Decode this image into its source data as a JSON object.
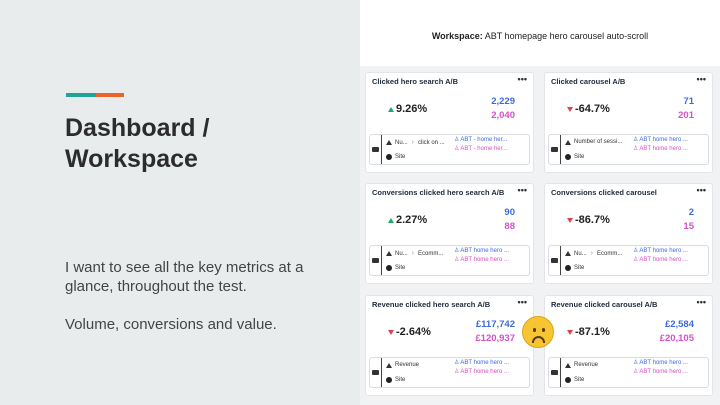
{
  "slide": {
    "title_line1": "Dashboard /",
    "title_line2": "Workspace",
    "desc_p1": "I want to see all the key metrics at a glance, throughout the test.",
    "desc_p2": "Volume, conversions and value.",
    "accent_colors": [
      "#1fa49a",
      "#e8642a"
    ]
  },
  "workspace": {
    "label": "Workspace:",
    "name": "ABT homepage hero carousel auto-scroll"
  },
  "colors": {
    "up": "#20a76b",
    "down": "#e0424f",
    "series_a": "#3d6bdc",
    "series_b": "#d650c8"
  },
  "cards": [
    {
      "title": "Clicked hero search A/B",
      "menu": "•••",
      "direction": "up",
      "change": "9.26%",
      "value_a": "2,229",
      "value_b": "2,040",
      "metric_label": "Nu...",
      "step_label": "click on ...",
      "segment_a": "ABT - home her...",
      "segment_b": "ABT - home her...",
      "scope": "Site"
    },
    {
      "title": "Clicked carousel A/B",
      "menu": "•••",
      "direction": "down",
      "change": "-64.7%",
      "value_a": "71",
      "value_b": "201",
      "metric_label": "Number of sessi...",
      "step_label": "",
      "segment_a": "ABT home hero ...",
      "segment_b": "ABT home hero ...",
      "scope": "Site"
    },
    {
      "title": "Conversions clicked hero search A/B",
      "menu": "•••",
      "direction": "up",
      "change": "2.27%",
      "value_a": "90",
      "value_b": "88",
      "metric_label": "Nu...",
      "step_label": "Ecomm...",
      "segment_a": "ABT home hero ...",
      "segment_b": "ABT home hero ...",
      "scope": "Site"
    },
    {
      "title": "Conversions clicked carousel",
      "menu": "•••",
      "direction": "down",
      "change": "-86.7%",
      "value_a": "2",
      "value_b": "15",
      "metric_label": "Nu...",
      "step_label": "Ecomm...",
      "segment_a": "ABT home hero ...",
      "segment_b": "ABT home hero ...",
      "scope": "Site"
    },
    {
      "title": "Revenue clicked hero search A/B",
      "menu": "•••",
      "direction": "down",
      "change": "-2.64%",
      "value_a": "£117,742",
      "value_b": "£120,937",
      "metric_label": "Revenue",
      "step_label": "",
      "segment_a": "ABT home hero ...",
      "segment_b": "ABT home hero ...",
      "scope": "Site"
    },
    {
      "title": "Revenue clicked carousel A/B",
      "menu": "•••",
      "direction": "down",
      "change": "-87.1%",
      "value_a": "£2,584",
      "value_b": "£20,105",
      "metric_label": "Revenue",
      "step_label": "",
      "segment_a": "ABT home hero ...",
      "segment_b": "ABT home hero ...",
      "scope": "Site"
    }
  ],
  "emoji_icon": "sad-face-icon"
}
